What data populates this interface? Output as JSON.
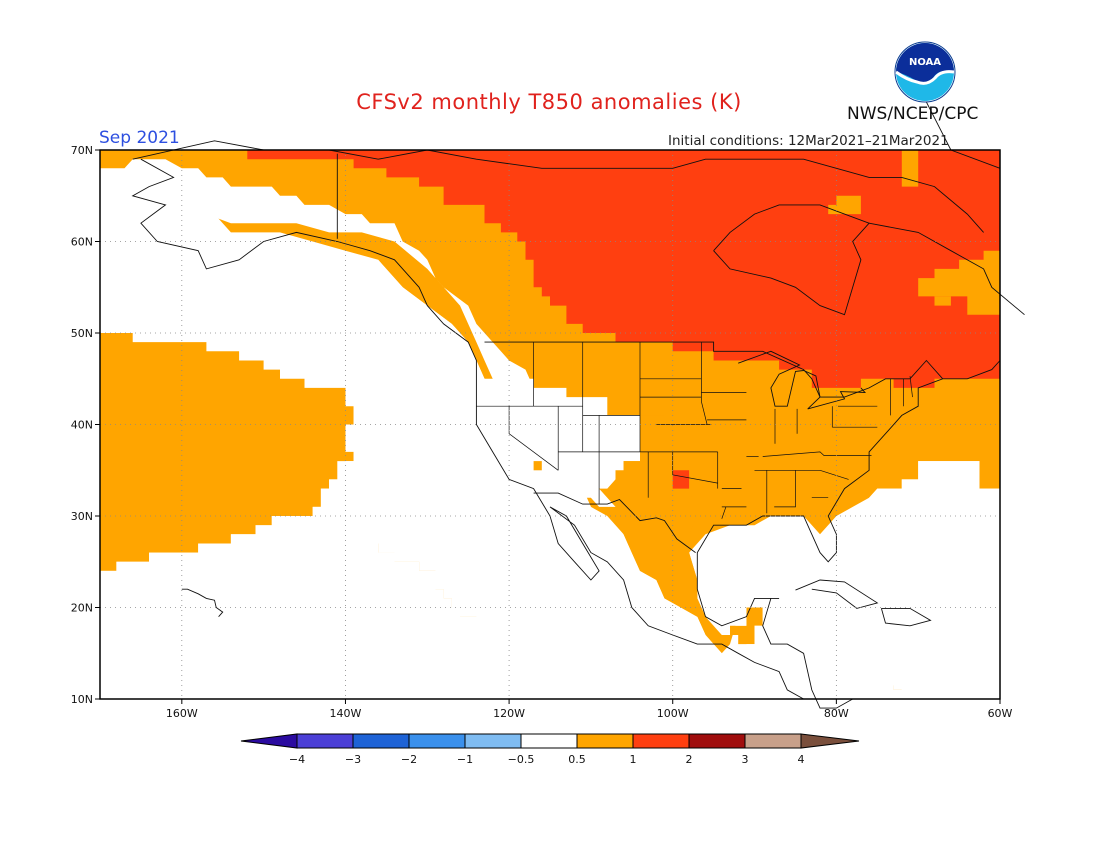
{
  "title": "CFSv2 monthly T850 anomalies (K)",
  "forecast_month": "Sep 2021",
  "initial_conditions": "Initial conditions: 12Mar2021–21Mar2021",
  "agency": "NWS/NCEP/CPC",
  "logo_text": "NOAA",
  "map": {
    "lat_labels": [
      "70N",
      "60N",
      "50N",
      "40N",
      "30N",
      "20N",
      "10N"
    ],
    "lon_labels": [
      "160W",
      "140W",
      "120W",
      "100W",
      "80W",
      "60W"
    ],
    "colors": {
      "pos_0_5_1": "#ffa500",
      "pos_1_2": "#ff3f10",
      "land_outline": "#111111",
      "grid": "#777777"
    }
  },
  "colorbar": {
    "labels": [
      "−4",
      "−3",
      "−2",
      "−1",
      "−0.5",
      "0.5",
      "1",
      "2",
      "3",
      "4"
    ],
    "colors": [
      "#2b0ba0",
      "#4b3fd6",
      "#1e63d6",
      "#3a90ec",
      "#7fbcf2",
      "#ffffff",
      "#ffa500",
      "#ff3f10",
      "#a00d0d",
      "#c8a08a",
      "#7a4f3c"
    ]
  }
}
